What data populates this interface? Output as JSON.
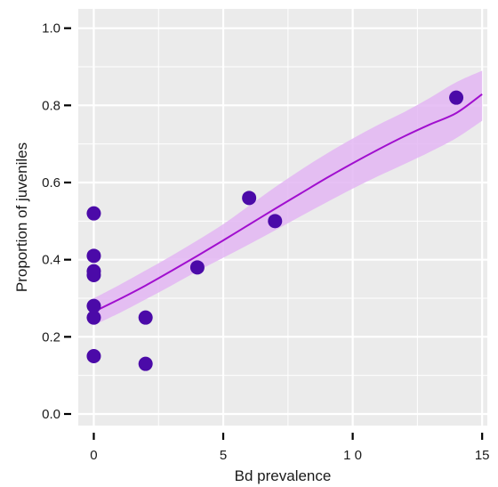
{
  "chart_data": {
    "type": "scatter",
    "title": "",
    "xlabel": "Bd prevalence",
    "ylabel": "Proportion of juveniles",
    "xlim": [
      -0.6,
      15.2
    ],
    "ylim": [
      -0.03,
      1.05
    ],
    "x_ticks": [
      0,
      5,
      10,
      15
    ],
    "x_tick_labels": [
      "0",
      "5",
      "1 0",
      "15"
    ],
    "y_ticks": [
      0.0,
      0.2,
      0.4,
      0.6,
      0.8,
      1.0
    ],
    "y_tick_labels": [
      "0.0",
      "0.2",
      "0.4",
      "0.6",
      "0.8",
      "1.0"
    ],
    "grid": true,
    "legend": "none",
    "colors": {
      "panel": "#ebebeb",
      "grid": "#ffffff",
      "points": "#4b0aa8",
      "fit_line": "#a10fcf",
      "ribbon": "#e3b6f3"
    },
    "points": [
      {
        "x": 0,
        "y": 0.52
      },
      {
        "x": 0,
        "y": 0.41
      },
      {
        "x": 0,
        "y": 0.37
      },
      {
        "x": 0,
        "y": 0.36
      },
      {
        "x": 0,
        "y": 0.28
      },
      {
        "x": 0,
        "y": 0.25
      },
      {
        "x": 0,
        "y": 0.15
      },
      {
        "x": 2,
        "y": 0.25
      },
      {
        "x": 2,
        "y": 0.13
      },
      {
        "x": 4,
        "y": 0.38
      },
      {
        "x": 6,
        "y": 0.56
      },
      {
        "x": 7,
        "y": 0.5
      },
      {
        "x": 14,
        "y": 0.82
      }
    ],
    "fit": {
      "model": "logistic",
      "x": [
        0,
        1,
        2,
        3,
        4,
        5,
        6,
        7,
        8,
        9,
        10,
        11,
        12,
        13,
        14,
        15
      ],
      "y": [
        0.265,
        0.298,
        0.333,
        0.371,
        0.41,
        0.45,
        0.491,
        0.532,
        0.572,
        0.612,
        0.65,
        0.686,
        0.72,
        0.751,
        0.78,
        0.829
      ],
      "ci_lower": [
        0.23,
        0.262,
        0.297,
        0.333,
        0.37,
        0.405,
        0.44,
        0.476,
        0.513,
        0.549,
        0.584,
        0.617,
        0.648,
        0.68,
        0.715,
        0.76
      ],
      "ci_upper": [
        0.3,
        0.335,
        0.372,
        0.41,
        0.45,
        0.492,
        0.54,
        0.588,
        0.633,
        0.675,
        0.714,
        0.75,
        0.783,
        0.82,
        0.86,
        0.89
      ]
    }
  }
}
